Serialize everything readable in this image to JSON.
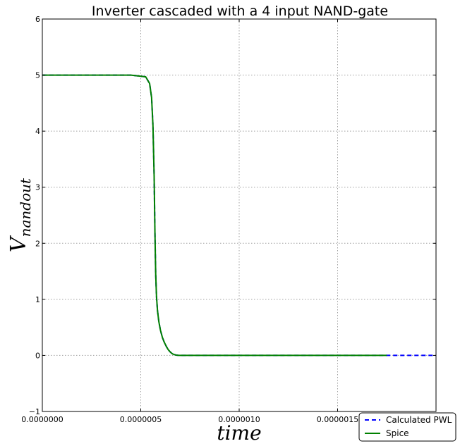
{
  "chart_data": {
    "type": "line",
    "title": "Inverter cascaded with a 4 input NAND-gate",
    "xlabel": "time",
    "ylabel": {
      "base": "V",
      "subscript": "nandout"
    },
    "xlim": [
      0,
      2e-06
    ],
    "ylim": [
      -1,
      6
    ],
    "xticks": [
      0,
      5e-07,
      1e-06,
      1.5e-06
    ],
    "xtick_labels": [
      "0.0000000",
      "0.0000005",
      "0.0000010",
      "0.0000015"
    ],
    "yticks": [
      -1,
      0,
      1,
      2,
      3,
      4,
      5,
      6
    ],
    "ytick_labels": [
      "−1",
      "0",
      "1",
      "2",
      "3",
      "4",
      "5",
      "6"
    ],
    "grid": true,
    "legend_position": "bottom-right",
    "series": [
      {
        "name": "Calculated PWL",
        "color": "#0000ff",
        "style": "dashed",
        "x": [
          0,
          4.5e-07,
          5.25e-07,
          5.45e-07,
          5.55e-07,
          5.62e-07,
          5.68e-07,
          5.72e-07,
          5.76e-07,
          5.8e-07,
          5.85e-07,
          5.92e-07,
          6e-07,
          6.1e-07,
          6.2e-07,
          6.3e-07,
          6.4e-07,
          6.5e-07,
          6.6e-07,
          6.7e-07,
          6.8e-07,
          6.9e-07,
          7e-07,
          2e-06
        ],
        "y": [
          5,
          5,
          4.97,
          4.85,
          4.6,
          4.1,
          3.2,
          2.2,
          1.45,
          1.05,
          0.8,
          0.6,
          0.45,
          0.32,
          0.23,
          0.16,
          0.1,
          0.06,
          0.03,
          0.015,
          0.006,
          0.002,
          0,
          0
        ]
      },
      {
        "name": "Spice",
        "color": "#008000",
        "style": "solid",
        "x": [
          0,
          4.5e-07,
          5.25e-07,
          5.45e-07,
          5.55e-07,
          5.62e-07,
          5.68e-07,
          5.72e-07,
          5.76e-07,
          5.8e-07,
          5.85e-07,
          5.92e-07,
          6e-07,
          6.1e-07,
          6.2e-07,
          6.3e-07,
          6.4e-07,
          6.5e-07,
          6.6e-07,
          6.7e-07,
          6.8e-07,
          6.9e-07,
          7e-07,
          1.75e-06
        ],
        "y": [
          5,
          5,
          4.97,
          4.85,
          4.6,
          4.1,
          3.2,
          2.2,
          1.45,
          1.05,
          0.8,
          0.6,
          0.45,
          0.32,
          0.23,
          0.16,
          0.1,
          0.06,
          0.03,
          0.015,
          0.006,
          0.002,
          0,
          0
        ]
      }
    ]
  }
}
